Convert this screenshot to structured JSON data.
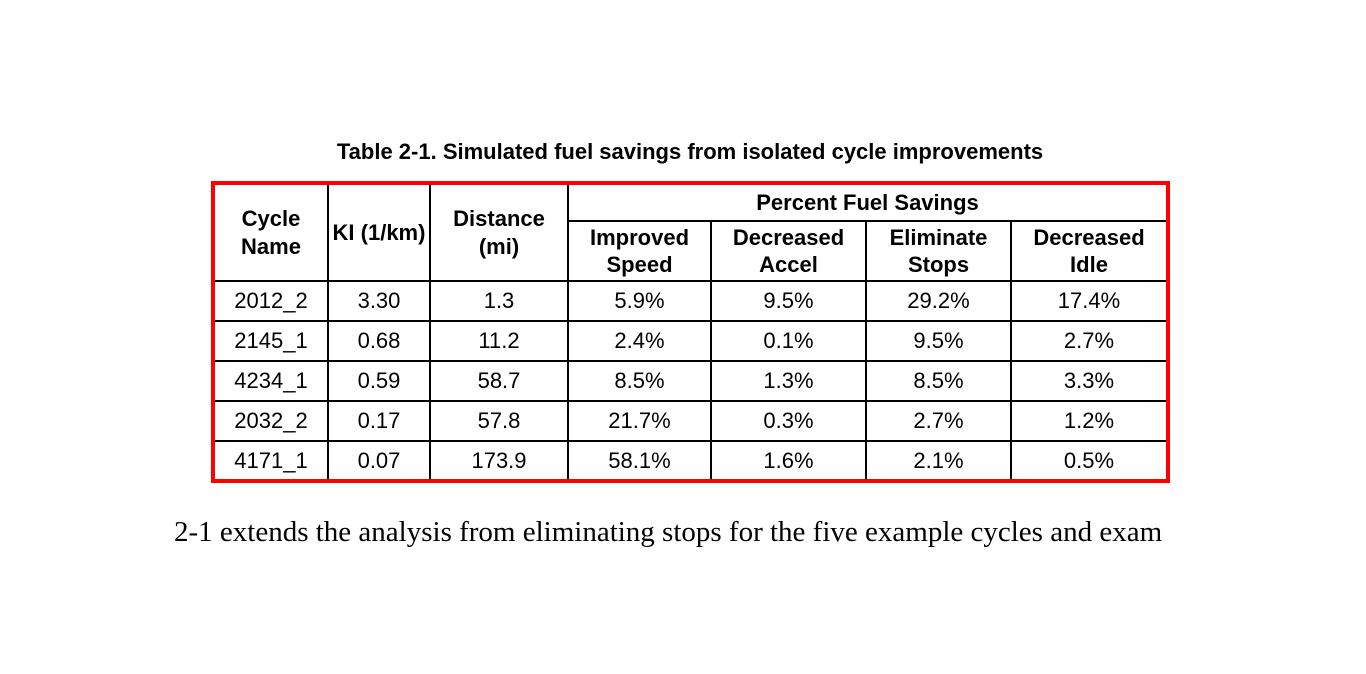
{
  "title": "Table 2-1. Simulated fuel savings from isolated cycle improvements",
  "table": {
    "headers": {
      "cycle_name": "Cycle Name",
      "ki": "KI (1/km)",
      "distance": "Distance (mi)",
      "group": "Percent Fuel Savings",
      "sub": [
        "Improved Speed",
        "Decreased Accel",
        "Eliminate Stops",
        "Decreased Idle"
      ]
    },
    "rows": [
      [
        "2012_2",
        "3.30",
        "1.3",
        "5.9%",
        "9.5%",
        "29.2%",
        "17.4%"
      ],
      [
        "2145_1",
        "0.68",
        "11.2",
        "2.4%",
        "0.1%",
        "9.5%",
        "2.7%"
      ],
      [
        "4234_1",
        "0.59",
        "58.7",
        "8.5%",
        "1.3%",
        "8.5%",
        "3.3%"
      ],
      [
        "2032_2",
        "0.17",
        "57.8",
        "21.7%",
        "0.3%",
        "2.7%",
        "1.2%"
      ],
      [
        "4171_1",
        "0.07",
        "173.9",
        "58.1%",
        "1.6%",
        "2.1%",
        "0.5%"
      ]
    ]
  },
  "body_text": "2-1 extends the analysis from eliminating stops for the five example cycles and exam",
  "colors": {
    "table_border": "#ff0000",
    "grid_lines": "#000000",
    "text": "#000000",
    "page_background": "#ffffff"
  }
}
